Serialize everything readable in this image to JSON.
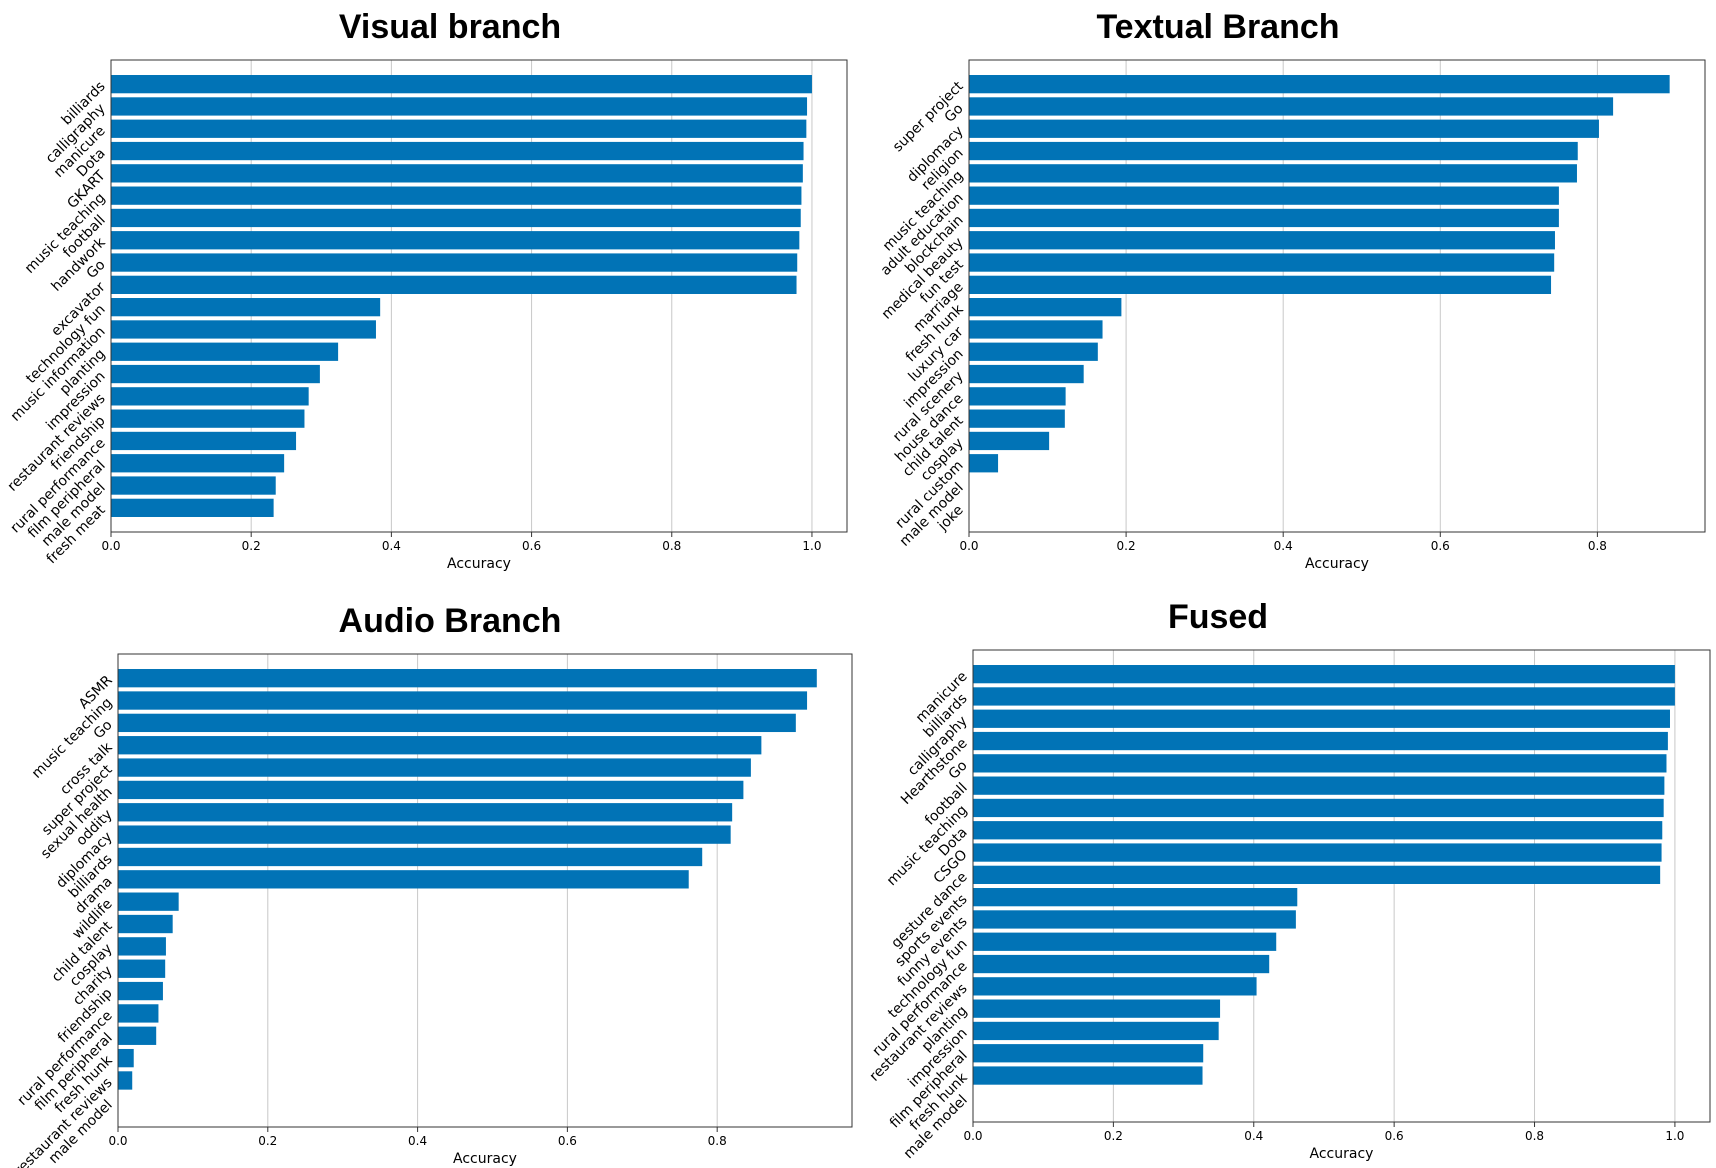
{
  "colors": {
    "bar": "#0173b6",
    "grid": "#c8c8c8",
    "frame": "#333333"
  },
  "chart_data": [
    {
      "type": "bar",
      "orientation": "horizontal",
      "title": "Visual branch",
      "xlabel": "Accuracy",
      "xlim": [
        0,
        1.05
      ],
      "xticks": [
        "0.0",
        "0.2",
        "0.4",
        "0.6",
        "0.8",
        "1.0"
      ],
      "grid": "vertical",
      "categories": [
        "billiards",
        "calligraphy",
        "manicure",
        "Dota",
        "GKART",
        "music teaching",
        "football",
        "handwork",
        "Go",
        "excavator",
        "technology fun",
        "music information",
        "planting",
        "impression",
        "restaurant reviews",
        "friendship",
        "rural performance",
        "film peripheral",
        "male model",
        "fresh meat"
      ],
      "values": [
        1.0,
        0.993,
        0.992,
        0.988,
        0.987,
        0.985,
        0.984,
        0.982,
        0.979,
        0.978,
        0.384,
        0.378,
        0.324,
        0.298,
        0.282,
        0.276,
        0.264,
        0.247,
        0.235,
        0.232
      ]
    },
    {
      "type": "bar",
      "orientation": "horizontal",
      "title": "Textual Branch",
      "xlabel": "Accuracy",
      "xlim": [
        0,
        0.937
      ],
      "xticks": [
        "0.0",
        "0.2",
        "0.4",
        "0.6",
        "0.8"
      ],
      "grid": "vertical",
      "categories": [
        "super project",
        "Go",
        "diplomacy",
        "religion",
        "music teaching",
        "adult education",
        "blockchain",
        "medical beauty",
        "fun test",
        "marriage",
        "fresh hunk",
        "luxury car",
        "impression",
        "rural scenery",
        "house dance",
        "child talent",
        "cosplay",
        "rural custom",
        "male model",
        "joke"
      ],
      "values": [
        0.892,
        0.82,
        0.802,
        0.775,
        0.774,
        0.751,
        0.751,
        0.746,
        0.745,
        0.741,
        0.194,
        0.17,
        0.164,
        0.146,
        0.123,
        0.122,
        0.102,
        0.037,
        0.0,
        0.0
      ]
    },
    {
      "type": "bar",
      "orientation": "horizontal",
      "title": "Audio Branch",
      "xlabel": "Accuracy",
      "xlim": [
        0,
        0.98
      ],
      "xticks": [
        "0.0",
        "0.2",
        "0.4",
        "0.6",
        "0.8"
      ],
      "grid": "vertical",
      "categories": [
        "ASMR",
        "music teaching",
        "Go",
        "cross talk",
        "super project",
        "sexual health",
        "oddity",
        "diplomacy",
        "billiards",
        "drama",
        "wildlife",
        "child talent",
        "cosplay",
        "charity",
        "friendship",
        "rural performance",
        "film peripheral",
        "fresh hunk",
        "restaurant reviews",
        "male model"
      ],
      "values": [
        0.933,
        0.92,
        0.905,
        0.859,
        0.845,
        0.835,
        0.82,
        0.818,
        0.78,
        0.762,
        0.081,
        0.073,
        0.064,
        0.063,
        0.06,
        0.054,
        0.051,
        0.021,
        0.019,
        0.0
      ]
    },
    {
      "type": "bar",
      "orientation": "horizontal",
      "title": "Fused",
      "xlabel": "Accuracy",
      "xlim": [
        0,
        1.05
      ],
      "xticks": [
        "0.0",
        "0.2",
        "0.4",
        "0.6",
        "0.8",
        "1.0"
      ],
      "grid": "vertical",
      "categories": [
        "manicure",
        "billiards",
        "calligraphy",
        "Hearthstone",
        "Go",
        "football",
        "music teaching",
        "Dota",
        "CSGO",
        "gesture dance",
        "sports events",
        "funny events",
        "technology fun",
        "rural performance",
        "restaurant reviews",
        "planting",
        "impression",
        "film peripheral",
        "fresh hunk",
        "male model"
      ],
      "values": [
        1.0,
        1.0,
        0.993,
        0.99,
        0.988,
        0.985,
        0.984,
        0.982,
        0.981,
        0.979,
        0.462,
        0.46,
        0.432,
        0.422,
        0.404,
        0.352,
        0.35,
        0.328,
        0.327,
        0.0
      ]
    }
  ]
}
